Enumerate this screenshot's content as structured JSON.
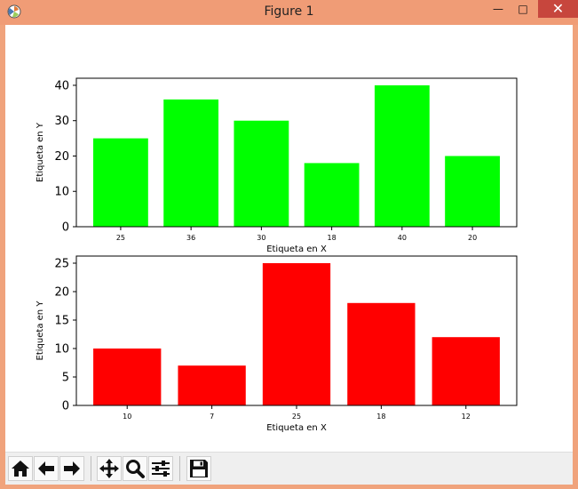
{
  "window": {
    "title": "Figure 1",
    "minimize_label": "—",
    "maximize_label": "□",
    "close_label": "✕"
  },
  "toolbar": {
    "buttons": [
      {
        "name": "home-button",
        "icon": "home-icon"
      },
      {
        "name": "back-button",
        "icon": "arrow-left-icon"
      },
      {
        "name": "forward-button",
        "icon": "arrow-right-icon"
      },
      {
        "name": "pan-button",
        "icon": "move-icon"
      },
      {
        "name": "zoom-button",
        "icon": "magnifier-icon"
      },
      {
        "name": "configure-subplots-button",
        "icon": "sliders-icon"
      },
      {
        "name": "save-button",
        "icon": "floppy-disk-icon"
      }
    ]
  },
  "chart_data": [
    {
      "type": "bar",
      "categories": [
        "25",
        "36",
        "30",
        "18",
        "40",
        "20"
      ],
      "values": [
        25,
        36,
        30,
        18,
        40,
        20
      ],
      "color": "#00ff00",
      "xlabel": "Etiqueta en X",
      "ylabel": "Etiqueta en Y",
      "ylim": [
        0,
        42
      ],
      "yticks": [
        0,
        10,
        20,
        30,
        40
      ]
    },
    {
      "type": "bar",
      "categories": [
        "10",
        "7",
        "25",
        "18",
        "12"
      ],
      "values": [
        10,
        7,
        25,
        18,
        12
      ],
      "color": "#ff0000",
      "xlabel": "Etiqueta en X",
      "ylabel": "Etiqueta en Y",
      "ylim": [
        0,
        26.25
      ],
      "yticks": [
        0,
        5,
        10,
        15,
        20,
        25
      ]
    }
  ]
}
